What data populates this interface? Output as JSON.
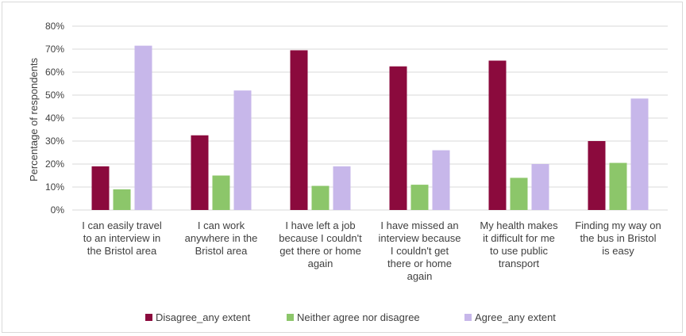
{
  "colors": {
    "disagree": "#8b0a3d",
    "neither": "#8cc66a",
    "agree": "#c7b7ea",
    "gridline": "#d9d9d9",
    "text": "#404040"
  },
  "chart_data": {
    "type": "bar",
    "ylabel": "Percentage of respondents",
    "ylim": [
      0,
      80
    ],
    "yticks": [
      "0%",
      "10%",
      "20%",
      "30%",
      "40%",
      "50%",
      "60%",
      "70%",
      "80%"
    ],
    "grid": true,
    "legend_position": "bottom",
    "categories": [
      [
        "I can easily travel",
        "to an interview in",
        "the Bristol area"
      ],
      [
        "I can work",
        "anywhere in the",
        "Bristol area"
      ],
      [
        "I have left a job",
        "because I couldn't",
        "get there or home",
        "again"
      ],
      [
        "I have missed an",
        "interview because",
        "I couldn't get",
        "there or home",
        "again"
      ],
      [
        "My health makes",
        "it difficult for me",
        "to use public",
        "transport"
      ],
      [
        "Finding my way on",
        "the bus in Bristol",
        "is easy"
      ]
    ],
    "series": [
      {
        "name": "Disagree_any extent",
        "color": "#8b0a3d",
        "values": [
          19,
          32.5,
          69.5,
          62.5,
          65,
          30
        ]
      },
      {
        "name": "Neither agree nor disagree",
        "color": "#8cc66a",
        "values": [
          9,
          15,
          10.5,
          11,
          14,
          20.5
        ]
      },
      {
        "name": "Agree_any extent",
        "color": "#c7b7ea",
        "values": [
          71.5,
          52,
          19,
          26,
          20,
          48.5
        ]
      }
    ]
  }
}
